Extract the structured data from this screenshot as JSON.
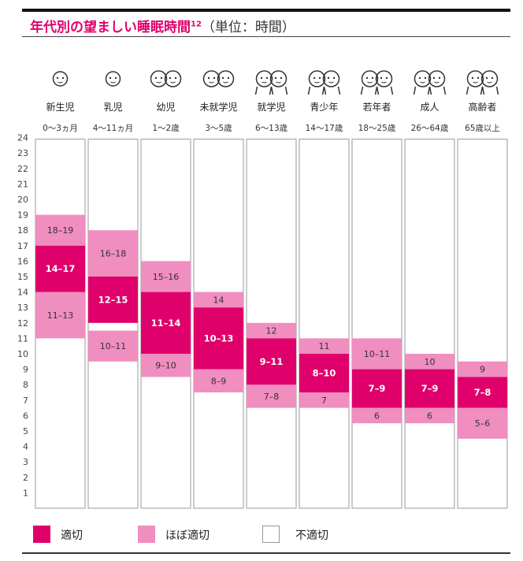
{
  "title": {
    "main": "年代別の望ましい睡眠時間",
    "footnote": "12",
    "unit": "（単位：時間）"
  },
  "colors": {
    "accent": "#e0006b",
    "appropriate": "#e0006b",
    "almost_appropriate": "#f08ec0",
    "inappropriate": "#ffffff",
    "border": "#999999"
  },
  "legend": [
    {
      "key": "appropriate",
      "label": "適切",
      "color": "#e0006b"
    },
    {
      "key": "almost_appropriate",
      "label": "ほぼ適切",
      "color": "#f08ec0"
    },
    {
      "key": "inappropriate",
      "label": "不適切",
      "color": "#ffffff"
    }
  ],
  "chart_data": {
    "type": "bar",
    "title": "年代別の望ましい睡眠時間",
    "ylabel": "",
    "xlabel": "",
    "ylim": [
      0,
      24
    ],
    "yticks": [
      1,
      2,
      3,
      4,
      5,
      6,
      7,
      8,
      9,
      10,
      11,
      12,
      13,
      14,
      15,
      16,
      17,
      18,
      19,
      20,
      21,
      22,
      23,
      24
    ],
    "grid": false,
    "legend_position": "bottom",
    "categories": [
      {
        "name": "新生児",
        "age": "0〜3ヵ月",
        "icon": "newborn-face-icon",
        "appropriate": [
          14,
          17
        ],
        "appropriate_label": "14–17",
        "almost_high": [
          17,
          19
        ],
        "almost_high_label": "18–19",
        "almost_low": [
          11,
          14
        ],
        "almost_low_label": "11–13"
      },
      {
        "name": "乳児",
        "age": "4〜11ヵ月",
        "icon": "infant-face-icon",
        "appropriate": [
          12,
          15
        ],
        "appropriate_label": "12–15",
        "almost_high": [
          15,
          18
        ],
        "almost_high_label": "16–18",
        "almost_low": [
          9.5,
          11.5
        ],
        "almost_low_label": "10–11"
      },
      {
        "name": "幼児",
        "age": "1〜2歳",
        "icon": "toddler-pair-icon",
        "appropriate": [
          10,
          14
        ],
        "appropriate_label": "11–14",
        "almost_high": [
          14,
          16
        ],
        "almost_high_label": "15–16",
        "almost_low": [
          8.5,
          10
        ],
        "almost_low_label": "9–10"
      },
      {
        "name": "未就学児",
        "age": "3〜5歳",
        "icon": "preschooler-pair-icon",
        "appropriate": [
          9,
          13
        ],
        "appropriate_label": "10–13",
        "almost_high": [
          13,
          14
        ],
        "almost_high_label": "14",
        "almost_low": [
          7.5,
          9
        ],
        "almost_low_label": "8–9"
      },
      {
        "name": "就学児",
        "age": "6〜13歳",
        "icon": "schoolchild-pair-icon",
        "appropriate": [
          8,
          11
        ],
        "appropriate_label": "9–11",
        "almost_high": [
          11,
          12
        ],
        "almost_high_label": "12",
        "almost_low": [
          6.5,
          8
        ],
        "almost_low_label": "7–8"
      },
      {
        "name": "青少年",
        "age": "14〜17歳",
        "icon": "teen-pair-icon",
        "appropriate": [
          7.5,
          10
        ],
        "appropriate_label": "8–10",
        "almost_high": [
          10,
          11
        ],
        "almost_high_label": "11",
        "almost_low": [
          6.5,
          7.5
        ],
        "almost_low_label": "7"
      },
      {
        "name": "若年者",
        "age": "18〜25歳",
        "icon": "young-adult-pair-icon",
        "appropriate": [
          6.5,
          9
        ],
        "appropriate_label": "7–9",
        "almost_high": [
          9,
          11
        ],
        "almost_high_label": "10–11",
        "almost_low": [
          5.5,
          6.5
        ],
        "almost_low_label": "6"
      },
      {
        "name": "成人",
        "age": "26〜64歳",
        "icon": "adult-pair-icon",
        "appropriate": [
          6.5,
          9
        ],
        "appropriate_label": "7–9",
        "almost_high": [
          9,
          10
        ],
        "almost_high_label": "10",
        "almost_low": [
          5.5,
          6.5
        ],
        "almost_low_label": "6"
      },
      {
        "name": "高齢者",
        "age": "65歳以上",
        "icon": "elderly-pair-icon",
        "appropriate": [
          6.5,
          8.5
        ],
        "appropriate_label": "7–8",
        "almost_high": [
          8.5,
          9.5
        ],
        "almost_high_label": "9",
        "almost_low": [
          4.5,
          6.5
        ],
        "almost_low_label": "5–6"
      }
    ]
  }
}
